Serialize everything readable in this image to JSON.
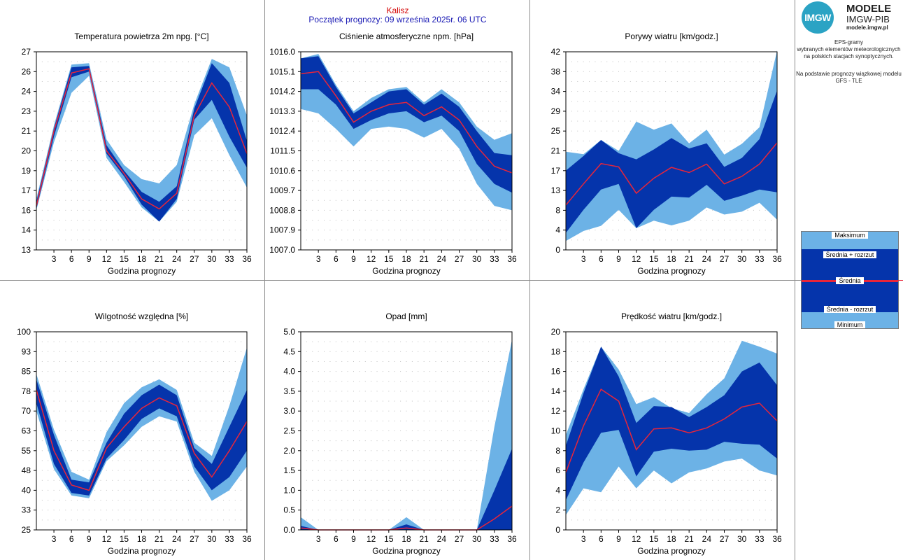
{
  "header": {
    "city": "Kalisz",
    "forecast_start": "Początek prognozy: 09 września 2025r. 06 UTC"
  },
  "brand": {
    "logo_text": "IMGW",
    "name": "MODELE",
    "org": "IMGW-PIB",
    "url": "modele.imgw.pl"
  },
  "info": {
    "line1": "EPS-gramy",
    "line2": "wybranych elementów meteorologicznych",
    "line3": "na polskich stacjach synoptycznych.",
    "line4": "Na podstawie prognozy wiązkowej modelu",
    "line5": "GFS - TLE"
  },
  "legend": {
    "max": "Maksimum",
    "upper": "Średnia + rozrzut",
    "mean": "Średnia",
    "lower": "Średnia - rozrzut",
    "min": "Minimum"
  },
  "colors": {
    "light_band": "#6cb2e6",
    "dark_band": "#0534ab",
    "mean_line": "#e8253a",
    "separator": "#8c8c8c"
  },
  "chart_data": [
    {
      "type": "area",
      "title": "Temperatura powietrza 2m npg. [°C]",
      "xlabel": "Godzina prognozy",
      "x": [
        0,
        3,
        6,
        9,
        12,
        15,
        18,
        21,
        24,
        27,
        30,
        33,
        36
      ],
      "xticks": [
        3,
        6,
        9,
        12,
        15,
        18,
        21,
        24,
        27,
        30,
        33,
        36
      ],
      "ylim": [
        13,
        27
      ],
      "yticks": [
        "13",
        "14",
        "16",
        "17",
        "19",
        "20",
        "21",
        "23",
        "24",
        "26",
        "27"
      ],
      "max": [
        16.6,
        21.8,
        26.1,
        26.2,
        20.8,
        19.0,
        18.0,
        17.7,
        19.0,
        23.3,
        26.5,
        25.9,
        22.5
      ],
      "upper": [
        16.4,
        21.6,
        25.9,
        26.0,
        20.4,
        18.6,
        17.1,
        16.4,
        17.5,
        23.0,
        26.2,
        24.8,
        20.7
      ],
      "mean": [
        16.1,
        21.4,
        25.5,
        25.8,
        20.0,
        18.4,
        16.6,
        15.9,
        17.0,
        22.5,
        24.8,
        23.1,
        19.8
      ],
      "lower": [
        15.9,
        21.0,
        25.2,
        25.6,
        19.8,
        18.2,
        16.2,
        15.0,
        16.6,
        22.2,
        23.6,
        21.0,
        18.8
      ],
      "min": [
        15.8,
        20.6,
        24.1,
        25.3,
        19.5,
        17.8,
        16.0,
        15.0,
        16.4,
        21.1,
        22.3,
        19.7,
        17.4
      ]
    },
    {
      "type": "area",
      "title": "Ciśnienie atmosferyczne npm. [hPa]",
      "xlabel": "Godzina prognozy",
      "x": [
        0,
        3,
        6,
        9,
        12,
        15,
        18,
        21,
        24,
        27,
        30,
        33,
        36
      ],
      "xticks": [
        3,
        6,
        9,
        12,
        15,
        18,
        21,
        24,
        27,
        30,
        33,
        36
      ],
      "ylim": [
        1007.0,
        1016.0
      ],
      "yticks": [
        "1007.0",
        "1007.9",
        "1008.8",
        "1009.7",
        "1010.6",
        "1011.5",
        "1012.4",
        "1013.3",
        "1014.2",
        "1015.1",
        "1016.0"
      ],
      "max": [
        1015.7,
        1015.9,
        1014.5,
        1013.3,
        1013.9,
        1014.3,
        1014.4,
        1013.7,
        1014.3,
        1013.7,
        1012.6,
        1012.0,
        1012.3
      ],
      "upper": [
        1015.7,
        1015.8,
        1014.4,
        1013.2,
        1013.7,
        1014.2,
        1014.3,
        1013.6,
        1014.1,
        1013.5,
        1012.4,
        1011.4,
        1011.3
      ],
      "mean": [
        1015.0,
        1015.1,
        1014.0,
        1012.8,
        1013.3,
        1013.6,
        1013.7,
        1013.1,
        1013.5,
        1012.9,
        1011.7,
        1010.8,
        1010.5
      ],
      "lower": [
        1014.3,
        1014.3,
        1013.6,
        1012.5,
        1012.9,
        1013.2,
        1013.3,
        1012.8,
        1013.1,
        1012.4,
        1010.9,
        1010.0,
        1009.6
      ],
      "min": [
        1013.4,
        1013.2,
        1012.5,
        1011.7,
        1012.5,
        1012.6,
        1012.5,
        1012.1,
        1012.5,
        1011.6,
        1010.0,
        1009.0,
        1008.8
      ]
    },
    {
      "type": "area",
      "title": "Porywy wiatru [km/godz.]",
      "xlabel": "Godzina prognozy",
      "x": [
        0,
        3,
        6,
        9,
        12,
        15,
        18,
        21,
        24,
        27,
        30,
        33,
        36
      ],
      "xticks": [
        3,
        6,
        9,
        12,
        15,
        18,
        21,
        24,
        27,
        30,
        33,
        36
      ],
      "ylim": [
        0,
        42
      ],
      "yticks": [
        "0",
        "4",
        "8",
        "13",
        "17",
        "21",
        "25",
        "29",
        "34",
        "38",
        "42"
      ],
      "max": [
        20.8,
        20.3,
        23.3,
        21.0,
        27.2,
        25.5,
        26.8,
        22.6,
        25.5,
        20.2,
        22.5,
        26.0,
        42.3
      ],
      "upper": [
        16.8,
        19.9,
        23.3,
        20.5,
        19.2,
        21.3,
        23.7,
        21.5,
        22.6,
        17.6,
        19.5,
        23.5,
        33.8
      ],
      "mean": [
        9.5,
        14.0,
        18.3,
        17.6,
        12.0,
        15.2,
        17.5,
        16.4,
        18.2,
        14.0,
        15.6,
        18.2,
        22.7
      ],
      "lower": [
        3.6,
        8.5,
        12.8,
        14.0,
        4.6,
        8.5,
        11.3,
        11.1,
        13.8,
        10.4,
        11.5,
        12.8,
        12.2
      ],
      "min": [
        1.9,
        4.0,
        5.1,
        8.5,
        4.6,
        6.2,
        5.2,
        6.2,
        9.0,
        7.5,
        8.1,
        10.0,
        6.4
      ]
    },
    {
      "type": "area",
      "title": "Wilgotność względna [%]",
      "xlabel": "Godzina prognozy",
      "x": [
        0,
        3,
        6,
        9,
        12,
        15,
        18,
        21,
        24,
        27,
        30,
        33,
        36
      ],
      "xticks": [
        3,
        6,
        9,
        12,
        15,
        18,
        21,
        24,
        27,
        30,
        33,
        36
      ],
      "ylim": [
        25,
        100
      ],
      "yticks": [
        "25",
        "33",
        "40",
        "48",
        "55",
        "63",
        "70",
        "78",
        "85",
        "93",
        "100"
      ],
      "max": [
        84,
        63,
        47,
        44,
        62,
        73,
        79,
        82,
        78,
        58,
        53,
        72,
        94
      ],
      "upper": [
        82,
        61,
        44,
        43,
        58,
        69,
        76,
        80,
        76,
        56,
        50,
        64,
        78
      ],
      "mean": [
        78,
        55,
        42,
        40,
        56,
        64,
        71,
        75,
        72,
        54,
        45,
        55,
        66
      ],
      "lower": [
        73,
        50,
        39,
        38,
        52,
        59,
        67,
        71,
        68,
        49,
        40,
        45,
        55
      ],
      "min": [
        70,
        48,
        38,
        37,
        51,
        57,
        64,
        68,
        66,
        47,
        36,
        40,
        49
      ]
    },
    {
      "type": "area",
      "title": "Opad [mm]",
      "xlabel": "Godzina prognozy",
      "x": [
        0,
        3,
        6,
        9,
        12,
        15,
        18,
        21,
        24,
        27,
        30,
        33,
        36
      ],
      "xticks": [
        3,
        6,
        9,
        12,
        15,
        18,
        21,
        24,
        27,
        30,
        33,
        36
      ],
      "ylim": [
        0,
        5
      ],
      "yticks": [
        "0.0",
        "0.5",
        "1.0",
        "1.5",
        "2.0",
        "2.5",
        "3.0",
        "3.5",
        "4.0",
        "4.5",
        "5.0"
      ],
      "max": [
        0.32,
        0.0,
        0.0,
        0.0,
        0.0,
        0.0,
        0.32,
        0.0,
        0.0,
        0.0,
        0.0,
        2.6,
        4.8
      ],
      "upper": [
        0.1,
        0.0,
        0.0,
        0.0,
        0.0,
        0.0,
        0.14,
        0.0,
        0.0,
        0.0,
        0.0,
        1.0,
        2.05
      ],
      "mean": [
        0.05,
        0.0,
        0.0,
        0.0,
        0.0,
        0.0,
        0.05,
        0.0,
        0.0,
        0.0,
        0.0,
        0.28,
        0.6
      ],
      "lower": [
        0.0,
        0.0,
        0.0,
        0.0,
        0.0,
        0.0,
        0.0,
        0.0,
        0.0,
        0.0,
        0.0,
        0.0,
        0.0
      ],
      "min": [
        0.0,
        0.0,
        0.0,
        0.0,
        0.0,
        0.0,
        0.0,
        0.0,
        0.0,
        0.0,
        0.0,
        0.0,
        0.0
      ]
    },
    {
      "type": "area",
      "title": "Prędkość wiatru [km/godz.]",
      "xlabel": "Godzina prognozy",
      "x": [
        0,
        3,
        6,
        9,
        12,
        15,
        18,
        21,
        24,
        27,
        30,
        33,
        36
      ],
      "xticks": [
        3,
        6,
        9,
        12,
        15,
        18,
        21,
        24,
        27,
        30,
        33,
        36
      ],
      "ylim": [
        0,
        20
      ],
      "yticks": [
        "0",
        "2",
        "4",
        "6",
        "8",
        "10",
        "12",
        "14",
        "16",
        "18",
        "20"
      ],
      "max": [
        9.6,
        14.2,
        18.5,
        16.2,
        12.7,
        13.4,
        12.3,
        11.8,
        13.7,
        15.3,
        19.1,
        18.5,
        17.8
      ],
      "upper": [
        8.5,
        13.8,
        18.5,
        15.5,
        10.8,
        12.5,
        12.4,
        11.4,
        12.4,
        13.6,
        16.0,
        16.9,
        14.6
      ],
      "mean": [
        5.8,
        10.5,
        14.2,
        13.0,
        8.1,
        10.2,
        10.3,
        9.8,
        10.3,
        11.2,
        12.4,
        12.8,
        11.0
      ],
      "lower": [
        3.0,
        6.8,
        9.8,
        10.1,
        5.4,
        7.9,
        8.2,
        8.0,
        8.1,
        8.9,
        8.7,
        8.6,
        7.2
      ],
      "min": [
        1.5,
        4.2,
        3.8,
        6.4,
        4.2,
        6.0,
        4.7,
        5.8,
        6.2,
        6.9,
        7.2,
        6.0,
        5.5
      ]
    }
  ]
}
